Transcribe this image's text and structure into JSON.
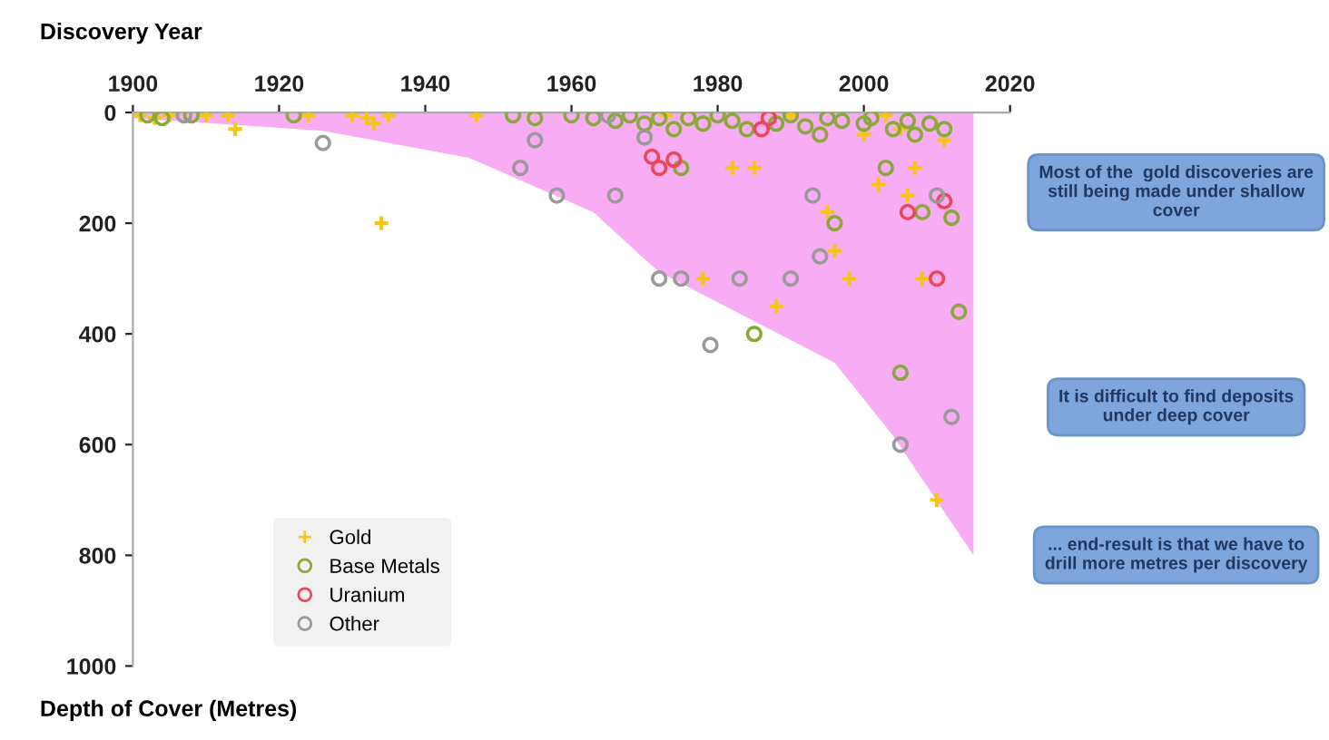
{
  "chart_data": {
    "type": "scatter",
    "xlabel": "Discovery Year",
    "ylabel": "Depth of Cover (Metres)",
    "xlim": [
      1900,
      2020
    ],
    "xticks": [
      1900,
      1920,
      1940,
      1960,
      1980,
      2000,
      2020
    ],
    "ylim": [
      1000,
      0
    ],
    "yticks": [
      0,
      200,
      400,
      600,
      800,
      1000
    ],
    "grid": false,
    "legend": "bottom left",
    "series": [
      {
        "type": "area",
        "color": "#f590f0",
        "x": [
          1900,
          1926,
          1946,
          1963,
          1970,
          1972,
          1996,
          2004,
          2015,
          2015
        ],
        "values": [
          10,
          33,
          82,
          180,
          265,
          288,
          452,
          584,
          800,
          0
        ]
      },
      {
        "name": "Gold",
        "color": "#f5c518",
        "marker": "cross",
        "x": [
          1901,
          1903,
          1905,
          1910,
          1913,
          1914,
          1924,
          1930,
          1932,
          1933,
          1934,
          1935,
          1947,
          1973,
          1978,
          1982,
          1985,
          1988,
          1990,
          1995,
          1996,
          1998,
          2000,
          2002,
          2003,
          2005,
          2006,
          2007,
          2008,
          2010,
          2011
        ],
        "values": [
          5,
          10,
          5,
          5,
          5,
          30,
          5,
          5,
          10,
          20,
          200,
          5,
          5,
          5,
          300,
          100,
          100,
          350,
          5,
          180,
          250,
          300,
          40,
          130,
          5,
          30,
          150,
          100,
          300,
          700,
          50
        ]
      },
      {
        "name": "Base Metals",
        "color": "#8aa83c",
        "marker": "circle",
        "x": [
          1902,
          1904,
          1908,
          1922,
          1952,
          1955,
          1960,
          1963,
          1966,
          1968,
          1970,
          1972,
          1974,
          1975,
          1976,
          1978,
          1980,
          1982,
          1984,
          1985,
          1988,
          1990,
          1992,
          1994,
          1995,
          1996,
          1997,
          2000,
          2001,
          2003,
          2004,
          2005,
          2006,
          2007,
          2008,
          2009,
          2011,
          2012,
          2013
        ],
        "values": [
          5,
          10,
          5,
          5,
          5,
          10,
          5,
          10,
          15,
          5,
          20,
          10,
          30,
          100,
          10,
          20,
          5,
          15,
          30,
          400,
          20,
          5,
          25,
          40,
          10,
          200,
          15,
          20,
          10,
          100,
          30,
          470,
          15,
          40,
          180,
          20,
          30,
          190,
          360
        ]
      },
      {
        "name": "Uranium",
        "color": "#e8485a",
        "marker": "circle",
        "x": [
          1971,
          1972,
          1974,
          1986,
          1987,
          2006,
          2010,
          2011
        ],
        "values": [
          80,
          100,
          85,
          30,
          10,
          180,
          300,
          160
        ]
      },
      {
        "name": "Other",
        "color": "#9a9a9a",
        "marker": "circle",
        "x": [
          1907,
          1926,
          1953,
          1955,
          1958,
          1965,
          1966,
          1970,
          1972,
          1975,
          1979,
          1983,
          1990,
          1993,
          1994,
          2005,
          2010,
          2012
        ],
        "values": [
          5,
          55,
          100,
          50,
          150,
          5,
          150,
          45,
          300,
          300,
          420,
          300,
          300,
          150,
          260,
          600,
          150,
          550
        ]
      }
    ],
    "annotations": [
      "Most of the  gold discoveries are still being made under shallow cover",
      "It is difficult to find deposits under deep cover",
      "... end-result is that we have to drill more metres per discovery"
    ]
  }
}
